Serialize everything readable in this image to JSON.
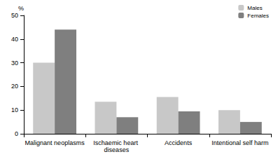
{
  "chart_data": {
    "type": "bar",
    "y_label": "%",
    "categories": [
      "Malignant neoplasms",
      "Ischaemic heart diseases",
      "Accidents",
      "Intentional self harm"
    ],
    "series": [
      {
        "name": "Males",
        "color": "#c8c8c8",
        "values": [
          30,
          13.5,
          15.5,
          10
        ]
      },
      {
        "name": "Females",
        "color": "#7f7f7f",
        "values": [
          44,
          7,
          9.5,
          5
        ]
      }
    ],
    "ylim": [
      0,
      50
    ],
    "yticks": [
      0,
      10,
      20,
      30,
      40,
      50
    ],
    "grid": false,
    "legend": "top-right"
  }
}
